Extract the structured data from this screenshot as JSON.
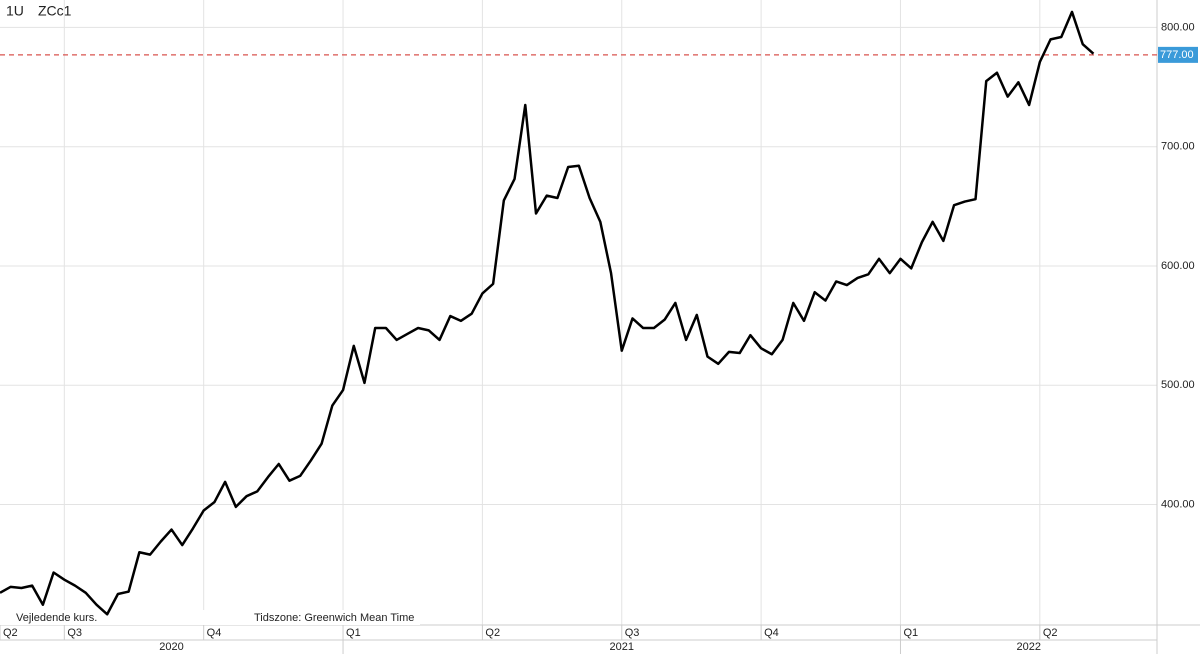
{
  "chart_data": {
    "type": "line",
    "title": "ZCc1",
    "interval": "1U",
    "note": "Vejledende kurs.",
    "timezone": "Tidszone: Greenwich Mean Time",
    "categories": [
      "Q2",
      null,
      null,
      null,
      null,
      null,
      "Q3",
      null,
      null,
      null,
      null,
      null,
      null,
      null,
      null,
      null,
      null,
      null,
      null,
      "Q4",
      null,
      null,
      null,
      null,
      null,
      null,
      null,
      null,
      null,
      null,
      null,
      null,
      "Q1",
      null,
      null,
      null,
      null,
      null,
      null,
      null,
      null,
      null,
      null,
      null,
      null,
      "Q2",
      null,
      null,
      null,
      null,
      null,
      null,
      null,
      null,
      null,
      null,
      null,
      null,
      "Q3",
      null,
      null,
      null,
      null,
      null,
      null,
      null,
      null,
      null,
      null,
      null,
      null,
      "Q4",
      null,
      null,
      null,
      null,
      null,
      null,
      null,
      null,
      null,
      null,
      null,
      null,
      "Q1",
      null,
      null,
      null,
      null,
      null,
      null,
      null,
      null,
      null,
      null,
      null,
      null,
      "Q2",
      null,
      null,
      null,
      null,
      null
    ],
    "years": [
      "2020",
      "2021",
      "2022"
    ],
    "values": [
      326,
      331,
      330,
      332,
      316,
      343,
      337,
      332,
      326,
      316,
      308,
      325,
      327,
      360,
      358,
      369,
      379,
      366,
      380,
      395,
      402,
      419,
      398,
      407,
      411,
      423,
      434,
      420,
      424,
      437,
      451,
      483,
      496,
      533,
      502,
      548,
      548,
      538,
      543,
      548,
      546,
      538,
      558,
      554,
      560,
      577,
      585,
      655,
      673,
      735,
      644,
      659,
      657,
      683,
      684,
      657,
      637,
      594,
      529,
      556,
      548,
      548,
      555,
      569,
      538,
      559,
      524,
      518,
      528,
      527,
      542,
      531,
      526,
      538,
      569,
      554,
      578,
      571,
      587,
      584,
      590,
      593,
      606,
      594,
      606,
      598,
      620,
      637,
      621,
      651,
      654,
      656,
      755,
      762,
      742,
      754,
      735,
      771,
      790,
      792,
      813,
      786,
      778
    ],
    "color": "#000000",
    "ylim": [
      299,
      823
    ],
    "yticks": [
      {
        "value": 400,
        "label": "400.00"
      },
      {
        "value": 500,
        "label": "500.00"
      },
      {
        "value": 600,
        "label": "600.00"
      },
      {
        "value": 700,
        "label": "700.00"
      },
      {
        "value": 800,
        "label": "800.00"
      }
    ],
    "grid": true,
    "ref_line": {
      "value": 777,
      "label": "777.00",
      "color": "#d9534f",
      "label_color": "#3a9ad9"
    }
  }
}
